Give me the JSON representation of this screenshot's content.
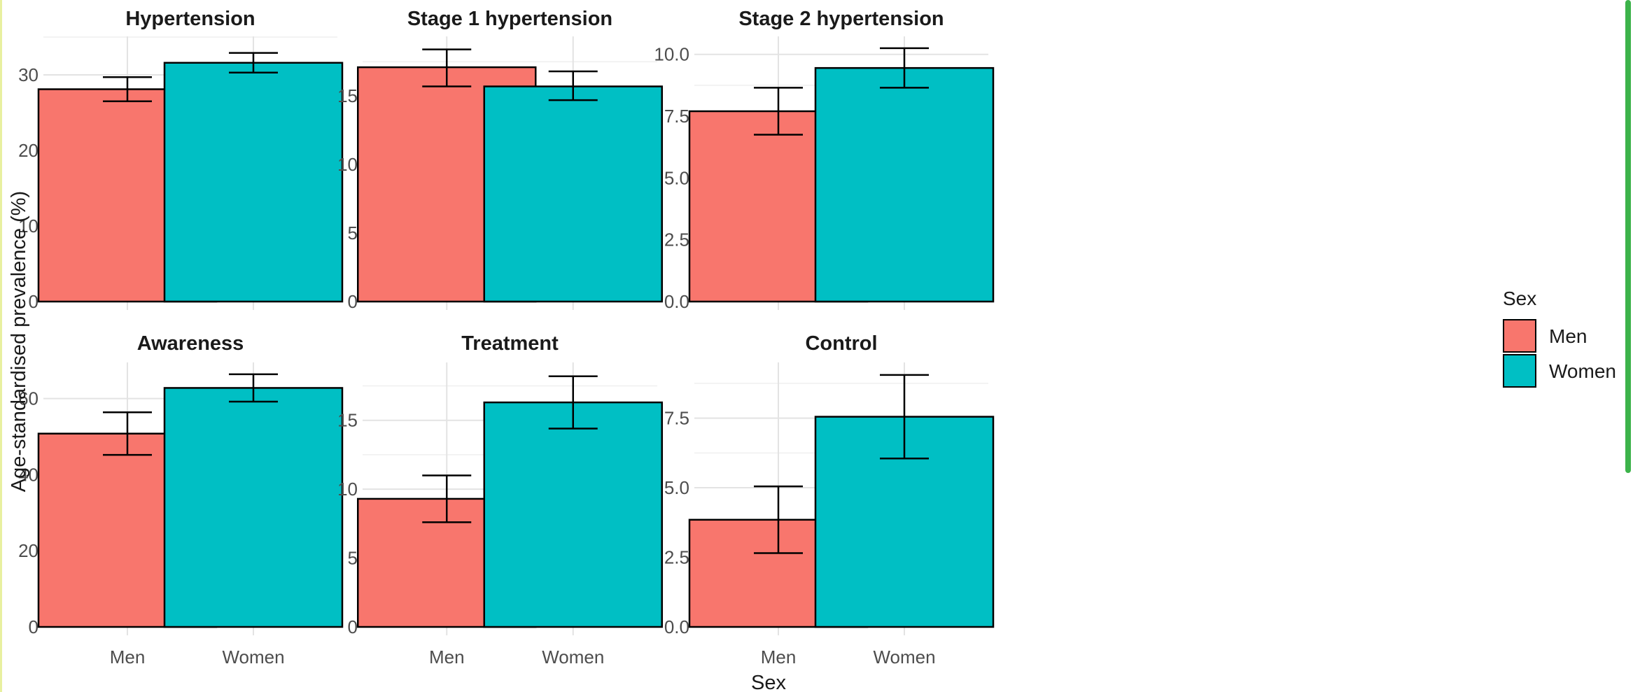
{
  "edge_colors": {
    "left": "#e8f0a0",
    "right": "#3cb34a"
  },
  "chart_data": {
    "type": "bar",
    "ylabel": "Age-standardised prevalence (%)",
    "xlabel": "Sex",
    "categories": [
      "Men",
      "Women"
    ],
    "colors": {
      "Men": "#F8766D",
      "Women": "#00BFC4"
    },
    "legend": {
      "title": "Sex",
      "entries": [
        "Men",
        "Women"
      ],
      "position": "right"
    },
    "grid": true,
    "facets": [
      {
        "title": "Hypertension",
        "ylim": [
          0,
          35
        ],
        "yticks": [
          0,
          10,
          20,
          30
        ],
        "tick_labels": [
          "0",
          "10",
          "20",
          "30"
        ],
        "values": [
          28.1,
          31.6
        ],
        "lower": [
          26.5,
          30.3
        ],
        "upper": [
          29.7,
          32.9
        ]
      },
      {
        "title": "Stage 1 hypertension",
        "ylim": [
          0,
          19.3
        ],
        "yticks": [
          0,
          5,
          10,
          15
        ],
        "tick_labels": [
          "0",
          "5",
          "10",
          "15"
        ],
        "values": [
          17.1,
          15.7
        ],
        "lower": [
          15.7,
          14.7
        ],
        "upper": [
          18.4,
          16.8
        ]
      },
      {
        "title": "Stage 2 hypertension",
        "ylim": [
          0,
          10.7
        ],
        "yticks": [
          0,
          2.5,
          5,
          7.5,
          10
        ],
        "tick_labels": [
          "0.0",
          "2.5",
          "5.0",
          "7.5",
          "10.0"
        ],
        "values": [
          7.7,
          9.45
        ],
        "lower": [
          6.75,
          8.65
        ],
        "upper": [
          8.65,
          10.25
        ]
      },
      {
        "title": "Awareness",
        "ylim": [
          0,
          69.5
        ],
        "yticks": [
          0,
          20,
          40,
          60
        ],
        "tick_labels": [
          "0",
          "20",
          "40",
          "60"
        ],
        "values": [
          50.8,
          62.8
        ],
        "lower": [
          45.2,
          59.2
        ],
        "upper": [
          56.4,
          66.4
        ]
      },
      {
        "title": "Treatment",
        "ylim": [
          0,
          19.2
        ],
        "yticks": [
          0,
          5,
          10,
          15
        ],
        "tick_labels": [
          "0",
          "5",
          "10",
          "15"
        ],
        "values": [
          9.3,
          16.3
        ],
        "lower": [
          7.6,
          14.4
        ],
        "upper": [
          11.0,
          18.2
        ]
      },
      {
        "title": "Control",
        "ylim": [
          0,
          9.5
        ],
        "yticks": [
          0,
          2.5,
          5,
          7.5
        ],
        "tick_labels": [
          "0.0",
          "2.5",
          "5.0",
          "7.5"
        ],
        "values": [
          3.85,
          7.55
        ],
        "lower": [
          2.65,
          6.05
        ],
        "upper": [
          5.05,
          9.05
        ]
      }
    ]
  }
}
